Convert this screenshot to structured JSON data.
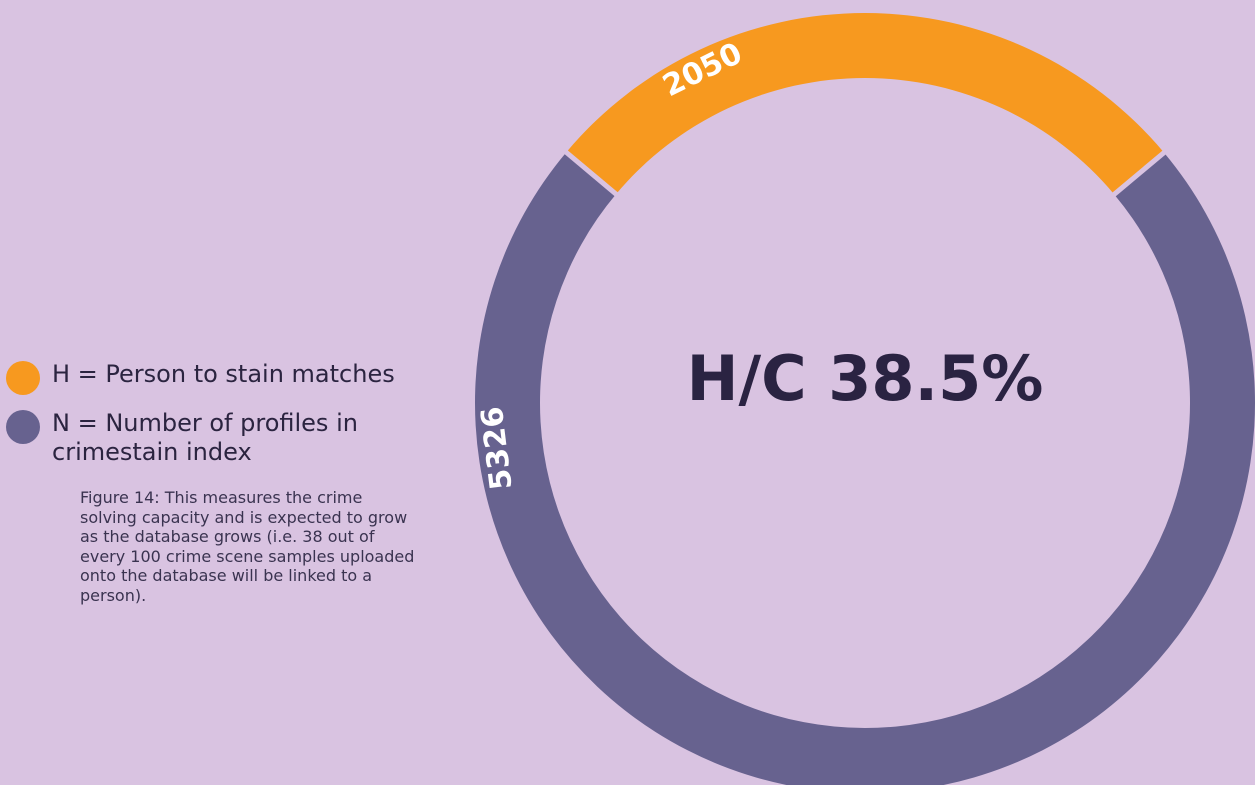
{
  "chart_data": {
    "type": "pie",
    "variant": "donut",
    "center_label": "H/C 38.5%",
    "slices": [
      {
        "key": "H",
        "value": 2050,
        "label": "2050",
        "color": "#f7991f"
      },
      {
        "key": "N",
        "value": 5326,
        "label": "5326",
        "color": "#67628f"
      }
    ],
    "background": "#d9c3e1",
    "gap_color": "#d9c3e1"
  },
  "legend": {
    "items": [
      {
        "label": "H = Person to stain matches",
        "color": "#f7991f"
      },
      {
        "label": "N = Number of profiles in crimestain index",
        "color": "#67628f"
      }
    ],
    "caption": "Figure 14: This measures the crime solving capacity and is expected to grow as the database grows (i.e. 38 out of every 100 crime scene samples uploaded onto the database will be linked to a person)."
  }
}
